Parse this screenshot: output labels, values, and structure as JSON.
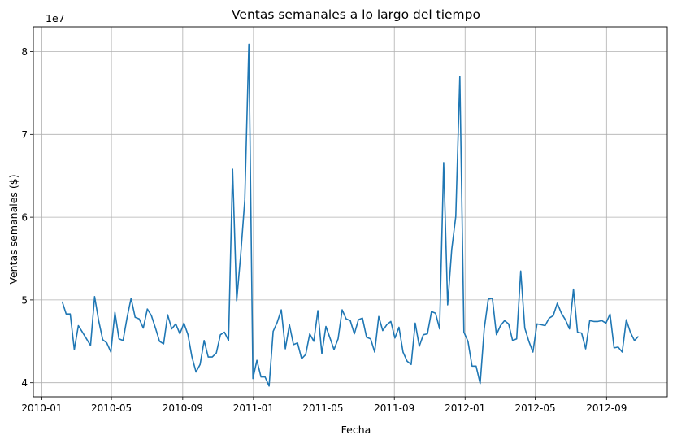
{
  "chart_data": {
    "type": "line",
    "title": "Ventas semanales a lo largo del tiempo",
    "xlabel": "Fecha",
    "ylabel": "Ventas semanales ($)",
    "y_offset_label": "1e7",
    "x_tick_labels": [
      "2010-01",
      "2010-05",
      "2010-09",
      "2011-01",
      "2011-05",
      "2011-09",
      "2012-01",
      "2012-05",
      "2012-09"
    ],
    "y_tick_labels": [
      "4",
      "5",
      "6",
      "7",
      "8"
    ],
    "ylim": [
      3.83,
      8.3
    ],
    "grid": true,
    "line_color": "#1f77b4",
    "series": [
      {
        "x": [
          "2010-02-05",
          "2010-02-12",
          "2010-02-19",
          "2010-02-26",
          "2010-03-05",
          "2010-03-12",
          "2010-03-19",
          "2010-03-26",
          "2010-04-02",
          "2010-04-09",
          "2010-04-16",
          "2010-04-23",
          "2010-04-30",
          "2010-05-07",
          "2010-05-14",
          "2010-05-21",
          "2010-05-28",
          "2010-06-04",
          "2010-06-11",
          "2010-06-18",
          "2010-06-25",
          "2010-07-02",
          "2010-07-09",
          "2010-07-16",
          "2010-07-23",
          "2010-07-30",
          "2010-08-06",
          "2010-08-13",
          "2010-08-20",
          "2010-08-27",
          "2010-09-03",
          "2010-09-10",
          "2010-09-17",
          "2010-09-24",
          "2010-10-01",
          "2010-10-08",
          "2010-10-15",
          "2010-10-22",
          "2010-10-29",
          "2010-11-05",
          "2010-11-12",
          "2010-11-19",
          "2010-11-26",
          "2010-12-03",
          "2010-12-10",
          "2010-12-17",
          "2010-12-24",
          "2010-12-31",
          "2011-01-07",
          "2011-01-14",
          "2011-01-21",
          "2011-01-28",
          "2011-02-04",
          "2011-02-11",
          "2011-02-18",
          "2011-02-25",
          "2011-03-04",
          "2011-03-11",
          "2011-03-18",
          "2011-03-25",
          "2011-04-01",
          "2011-04-08",
          "2011-04-15",
          "2011-04-22",
          "2011-04-29",
          "2011-05-06",
          "2011-05-13",
          "2011-05-20",
          "2011-05-27",
          "2011-06-03",
          "2011-06-10",
          "2011-06-17",
          "2011-06-24",
          "2011-07-01",
          "2011-07-08",
          "2011-07-15",
          "2011-07-22",
          "2011-07-29",
          "2011-08-05",
          "2011-08-12",
          "2011-08-19",
          "2011-08-26",
          "2011-09-02",
          "2011-09-09",
          "2011-09-16",
          "2011-09-23",
          "2011-09-30",
          "2011-10-07",
          "2011-10-14",
          "2011-10-21",
          "2011-10-28",
          "2011-11-04",
          "2011-11-11",
          "2011-11-18",
          "2011-11-25",
          "2011-12-02",
          "2011-12-09",
          "2011-12-16",
          "2011-12-23",
          "2011-12-30",
          "2012-01-06",
          "2012-01-13",
          "2012-01-20",
          "2012-01-27",
          "2012-02-03",
          "2012-02-10",
          "2012-02-17",
          "2012-02-24",
          "2012-03-02",
          "2012-03-09",
          "2012-03-16",
          "2012-03-23",
          "2012-03-30",
          "2012-04-06",
          "2012-04-13",
          "2012-04-20",
          "2012-04-27",
          "2012-05-04",
          "2012-05-11",
          "2012-05-18",
          "2012-05-25",
          "2012-06-01",
          "2012-06-08",
          "2012-06-15",
          "2012-06-22",
          "2012-06-29",
          "2012-07-06",
          "2012-07-13",
          "2012-07-20",
          "2012-07-27",
          "2012-08-03",
          "2012-08-10",
          "2012-08-17",
          "2012-08-24",
          "2012-08-31",
          "2012-09-07",
          "2012-09-14",
          "2012-09-21",
          "2012-09-28",
          "2012-10-05",
          "2012-10-12",
          "2012-10-19",
          "2012-10-26"
        ],
        "y": [
          4.98,
          4.83,
          4.83,
          4.4,
          4.69,
          4.61,
          4.53,
          4.45,
          5.04,
          4.75,
          4.52,
          4.48,
          4.37,
          4.85,
          4.53,
          4.51,
          4.79,
          5.02,
          4.79,
          4.77,
          4.66,
          4.89,
          4.81,
          4.66,
          4.5,
          4.47,
          4.82,
          4.65,
          4.71,
          4.59,
          4.72,
          4.58,
          4.31,
          4.13,
          4.22,
          4.51,
          4.31,
          4.31,
          4.36,
          4.58,
          4.61,
          4.51,
          6.58,
          4.99,
          5.55,
          6.21,
          8.09,
          4.05,
          4.27,
          4.07,
          4.07,
          3.96,
          4.62,
          4.73,
          4.88,
          4.41,
          4.7,
          4.46,
          4.48,
          4.29,
          4.34,
          4.59,
          4.5,
          4.87,
          4.35,
          4.68,
          4.54,
          4.4,
          4.53,
          4.88,
          4.77,
          4.75,
          4.59,
          4.76,
          4.78,
          4.55,
          4.53,
          4.37,
          4.8,
          4.63,
          4.7,
          4.74,
          4.54,
          4.67,
          4.37,
          4.26,
          4.22,
          4.72,
          4.44,
          4.58,
          4.59,
          4.86,
          4.84,
          4.65,
          6.66,
          4.94,
          5.61,
          6.01,
          7.7,
          4.61,
          4.5,
          4.2,
          4.2,
          3.99,
          4.65,
          5.01,
          5.02,
          4.58,
          4.69,
          4.75,
          4.71,
          4.51,
          4.53,
          5.35,
          4.66,
          4.5,
          4.37,
          4.71,
          4.7,
          4.69,
          4.78,
          4.81,
          4.96,
          4.84,
          4.76,
          4.65,
          5.13,
          4.61,
          4.6,
          4.41,
          4.75,
          4.74,
          4.74,
          4.75,
          4.72,
          4.83,
          4.42,
          4.43,
          4.37,
          4.76,
          4.61,
          4.51,
          4.56
        ]
      }
    ]
  }
}
